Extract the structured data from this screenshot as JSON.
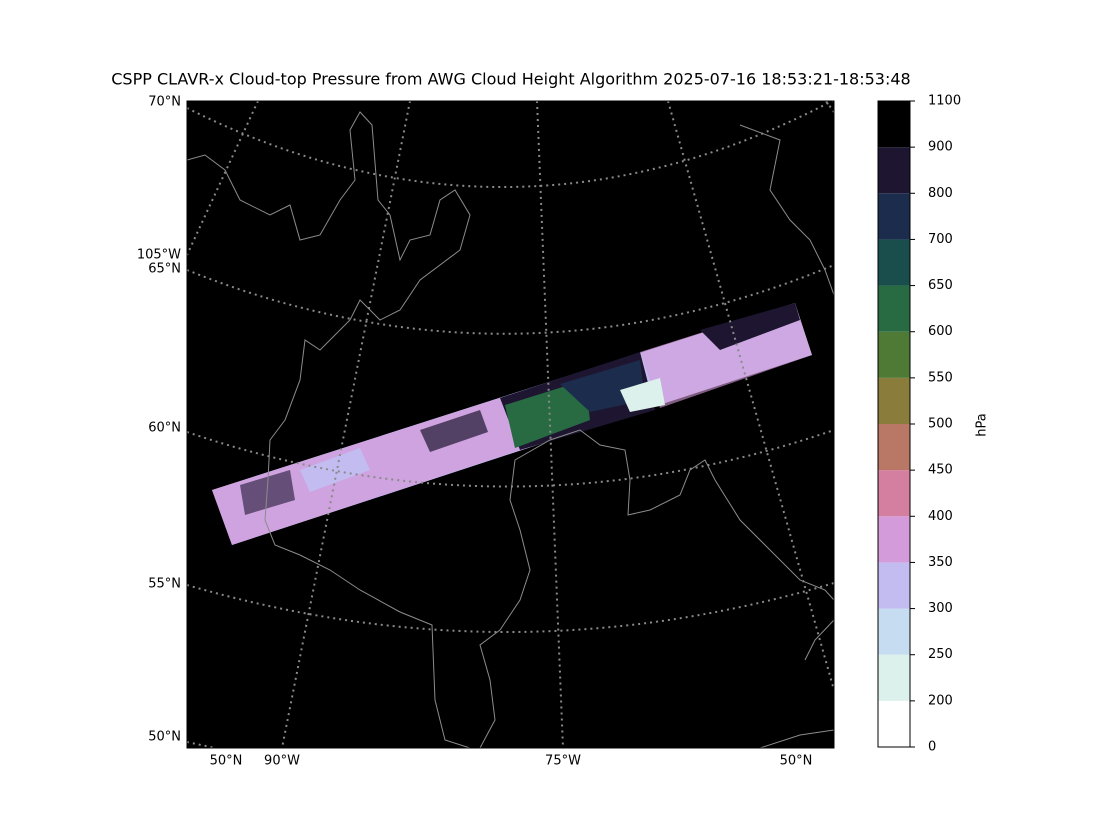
{
  "title": "CSPP CLAVR-x Cloud-top Pressure from AWG Cloud Height Algorithm 2025-07-16 18:53:21-18:53:48",
  "map": {
    "lat_labels": [
      "70°N",
      "105°W",
      "65°N",
      "60°N",
      "55°N",
      "50°N"
    ],
    "lon_labels": [
      "50°N",
      "90°W",
      "75°W",
      "50°N"
    ]
  },
  "colorbar": {
    "label": "hPa",
    "bounds": [
      0,
      200,
      250,
      300,
      350,
      400,
      450,
      500,
      550,
      600,
      650,
      700,
      800,
      900,
      1100
    ],
    "colors": [
      "#ffffff",
      "#dcf1ec",
      "#c6dcf1",
      "#c3bcf1",
      "#d39bd9",
      "#d47fa0",
      "#b87865",
      "#8a7c3a",
      "#4f7a36",
      "#286b43",
      "#1a4e4d",
      "#1c2c4d",
      "#1e1631",
      "#000000"
    ]
  }
}
